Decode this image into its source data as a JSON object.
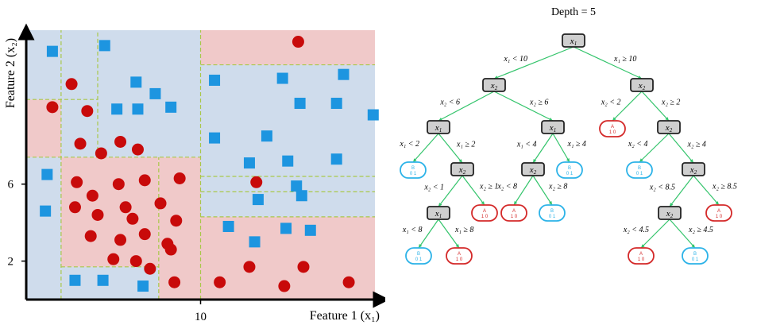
{
  "scatter": {
    "ylabel": "Feature 2 (x₂)",
    "xlabel": "Feature 1 (x₁)",
    "y_ticks": [
      {
        "v": 6,
        "label": "6"
      },
      {
        "v": 2,
        "label": "2"
      }
    ],
    "x_ticks": [
      {
        "v": 10,
        "label": "10"
      }
    ],
    "colors": {
      "blue_region": "#cfdcec",
      "red_region": "#f0c9c9",
      "square": "#1d95e0",
      "circle": "#c80a0a",
      "split_line": "#a9c84a"
    },
    "regions": [
      {
        "class": "blue",
        "x": [
          0,
          2
        ],
        "y": [
          0,
          7.4
        ]
      },
      {
        "class": "red",
        "x": [
          0,
          2
        ],
        "y": [
          7.4,
          10.4
        ]
      },
      {
        "class": "blue",
        "x": [
          0,
          2
        ],
        "y": [
          10.4,
          14
        ]
      },
      {
        "class": "red",
        "x": [
          2,
          7.6
        ],
        "y": [
          1.7,
          7.4
        ]
      },
      {
        "class": "blue",
        "x": [
          2,
          7.6
        ],
        "y": [
          0,
          1.7
        ]
      },
      {
        "class": "red",
        "x": [
          7.6,
          10
        ],
        "y": [
          0,
          7.4
        ]
      },
      {
        "class": "blue",
        "x": [
          2,
          10
        ],
        "y": [
          7.4,
          14
        ]
      },
      {
        "class": "red",
        "x": [
          10,
          20
        ],
        "y": [
          12.2,
          14
        ]
      },
      {
        "class": "blue",
        "x": [
          10,
          20
        ],
        "y": [
          4.3,
          12.2
        ]
      },
      {
        "class": "red",
        "x": [
          10,
          20
        ],
        "y": [
          0,
          4.3
        ]
      }
    ],
    "split_lines": [
      {
        "x": [
          10,
          10
        ],
        "y": [
          0,
          14
        ]
      },
      {
        "x": [
          2,
          2
        ],
        "y": [
          0,
          14
        ]
      },
      {
        "x": [
          4.1,
          4.1
        ],
        "y": [
          7.4,
          14
        ]
      },
      {
        "x": [
          7.6,
          7.6
        ],
        "y": [
          0,
          7.4
        ]
      },
      {
        "x": [
          0,
          10
        ],
        "y": [
          7.4,
          7.4
        ]
      },
      {
        "x": [
          0,
          4.1
        ],
        "y": [
          10.4,
          10.4
        ]
      },
      {
        "x": [
          2,
          7.6
        ],
        "y": [
          1.7,
          1.7
        ]
      },
      {
        "x": [
          10,
          20
        ],
        "y": [
          12.2,
          12.2
        ]
      },
      {
        "x": [
          10,
          20
        ],
        "y": [
          4.3,
          4.3
        ]
      },
      {
        "x": [
          10,
          20
        ],
        "y": [
          6.4,
          6.4
        ]
      },
      {
        "x": [
          10,
          20
        ],
        "y": [
          5.6,
          5.6
        ]
      }
    ],
    "squares": [
      [
        1.5,
        12.9
      ],
      [
        4.5,
        13.2
      ],
      [
        6.3,
        11.3
      ],
      [
        7.4,
        10.7
      ],
      [
        5.2,
        9.9
      ],
      [
        6.4,
        9.9
      ],
      [
        8.3,
        10.0
      ],
      [
        10.8,
        11.4
      ],
      [
        14.7,
        11.5
      ],
      [
        18.2,
        11.7
      ],
      [
        15.7,
        10.2
      ],
      [
        17.8,
        10.2
      ],
      [
        19.9,
        9.6
      ],
      [
        1.2,
        6.5
      ],
      [
        1.1,
        4.6
      ],
      [
        10.8,
        8.4
      ],
      [
        13.8,
        8.5
      ],
      [
        12.8,
        7.1
      ],
      [
        15.0,
        7.2
      ],
      [
        17.8,
        7.3
      ],
      [
        15.5,
        5.9
      ],
      [
        13.3,
        5.2
      ],
      [
        15.8,
        5.4
      ],
      [
        11.6,
        3.8
      ],
      [
        14.9,
        3.7
      ],
      [
        16.3,
        3.6
      ],
      [
        13.1,
        3.0
      ],
      [
        2.8,
        1.0
      ],
      [
        4.4,
        1.0
      ],
      [
        6.7,
        0.7
      ]
    ],
    "circles": [
      [
        15.6,
        13.4
      ],
      [
        2.6,
        11.2
      ],
      [
        1.5,
        10.0
      ],
      [
        3.5,
        9.8
      ],
      [
        3.1,
        8.1
      ],
      [
        5.4,
        8.2
      ],
      [
        6.4,
        7.8
      ],
      [
        4.3,
        7.6
      ],
      [
        2.9,
        6.1
      ],
      [
        5.3,
        6.0
      ],
      [
        3.8,
        5.4
      ],
      [
        6.8,
        6.2
      ],
      [
        8.8,
        6.3
      ],
      [
        2.8,
        4.8
      ],
      [
        5.7,
        4.8
      ],
      [
        7.7,
        5.0
      ],
      [
        4.1,
        4.4
      ],
      [
        6.1,
        4.2
      ],
      [
        8.6,
        4.1
      ],
      [
        3.7,
        3.3
      ],
      [
        5.4,
        3.1
      ],
      [
        6.8,
        3.4
      ],
      [
        8.1,
        2.9
      ],
      [
        5.0,
        2.1
      ],
      [
        6.3,
        2.0
      ],
      [
        8.3,
        2.6
      ],
      [
        7.1,
        1.6
      ],
      [
        13.2,
        6.1
      ],
      [
        12.8,
        1.7
      ],
      [
        15.9,
        1.7
      ],
      [
        8.5,
        0.9
      ],
      [
        11.1,
        0.9
      ],
      [
        14.8,
        0.7
      ],
      [
        18.5,
        0.9
      ]
    ]
  },
  "tree": {
    "title": "Depth = 5",
    "colors": {
      "decision_fill": "#cfcfcf",
      "decision_stroke": "#222222",
      "edge": "#33c46b",
      "leaf_a": "#d42a2a",
      "leaf_b": "#2db3e8"
    },
    "nodes": [
      {
        "id": "n1",
        "type": "decision",
        "var": "x",
        "sub": "1"
      },
      {
        "id": "n2",
        "type": "decision",
        "var": "x",
        "sub": "2"
      },
      {
        "id": "n3",
        "type": "decision",
        "var": "x",
        "sub": "2"
      },
      {
        "id": "n4",
        "type": "decision",
        "var": "x",
        "sub": "1"
      },
      {
        "id": "n5",
        "type": "decision",
        "var": "x",
        "sub": "1"
      },
      {
        "id": "n6",
        "type": "leaf",
        "cls": "A",
        "counts": "1  0"
      },
      {
        "id": "n7",
        "type": "decision",
        "var": "x",
        "sub": "2"
      },
      {
        "id": "n8",
        "type": "leaf",
        "cls": "B",
        "counts": "0  1"
      },
      {
        "id": "n9",
        "type": "decision",
        "var": "x",
        "sub": "2"
      },
      {
        "id": "n10",
        "type": "decision",
        "var": "x",
        "sub": "2"
      },
      {
        "id": "n11",
        "type": "leaf",
        "cls": "B",
        "counts": "0  1"
      },
      {
        "id": "n12",
        "type": "leaf",
        "cls": "B",
        "counts": "0  1"
      },
      {
        "id": "n13",
        "type": "decision",
        "var": "x",
        "sub": "2"
      },
      {
        "id": "n14",
        "type": "decision",
        "var": "x",
        "sub": "1"
      },
      {
        "id": "n15",
        "type": "leaf",
        "cls": "A",
        "counts": "1  0"
      },
      {
        "id": "n16",
        "type": "leaf",
        "cls": "A",
        "counts": "1  0"
      },
      {
        "id": "n17",
        "type": "leaf",
        "cls": "B",
        "counts": "0  1"
      },
      {
        "id": "n18",
        "type": "decision",
        "var": "x",
        "sub": "2"
      },
      {
        "id": "n19",
        "type": "leaf",
        "cls": "A",
        "counts": "1  0"
      },
      {
        "id": "n20",
        "type": "leaf",
        "cls": "B",
        "counts": "0  1"
      },
      {
        "id": "n21",
        "type": "leaf",
        "cls": "A",
        "counts": "1  0"
      },
      {
        "id": "n22",
        "type": "leaf",
        "cls": "A",
        "counts": "1  0"
      },
      {
        "id": "n23",
        "type": "leaf",
        "cls": "B",
        "counts": "0  1"
      }
    ],
    "edges": [
      {
        "from": "n1",
        "to": "n2",
        "label": "x₁ < 10"
      },
      {
        "from": "n1",
        "to": "n3",
        "label": "x₁ ≥ 10"
      },
      {
        "from": "n2",
        "to": "n4",
        "label": "x₂ < 6"
      },
      {
        "from": "n2",
        "to": "n5",
        "label": "x₂ ≥ 6"
      },
      {
        "from": "n3",
        "to": "n6",
        "label": "x₂ < 2"
      },
      {
        "from": "n3",
        "to": "n7",
        "label": "x₂ ≥ 2"
      },
      {
        "from": "n4",
        "to": "n8",
        "label": "x₁ < 2"
      },
      {
        "from": "n4",
        "to": "n9",
        "label": "x₁ ≥ 2"
      },
      {
        "from": "n5",
        "to": "n10",
        "label": "x₁ < 4"
      },
      {
        "from": "n5",
        "to": "n11",
        "label": "x₁ ≥ 4"
      },
      {
        "from": "n7",
        "to": "n12",
        "label": "x₂ < 4"
      },
      {
        "from": "n7",
        "to": "n13",
        "label": "x₂ ≥ 4"
      },
      {
        "from": "n9",
        "to": "n14",
        "label": "x₂ < 1"
      },
      {
        "from": "n9",
        "to": "n15",
        "label": "x₂ ≥ 1"
      },
      {
        "from": "n10",
        "to": "n16",
        "label": "x₂ < 8"
      },
      {
        "from": "n10",
        "to": "n17",
        "label": "x₂ ≥ 8"
      },
      {
        "from": "n13",
        "to": "n18",
        "label": "x₂ < 8.5"
      },
      {
        "from": "n13",
        "to": "n19",
        "label": "x₂ ≥ 8.5"
      },
      {
        "from": "n14",
        "to": "n20",
        "label": "x₁ < 8"
      },
      {
        "from": "n14",
        "to": "n21",
        "label": "x₁ ≥ 8"
      },
      {
        "from": "n18",
        "to": "n22",
        "label": "x₂ < 4.5"
      },
      {
        "from": "n18",
        "to": "n23",
        "label": "x₂ ≥ 4.5"
      }
    ]
  }
}
